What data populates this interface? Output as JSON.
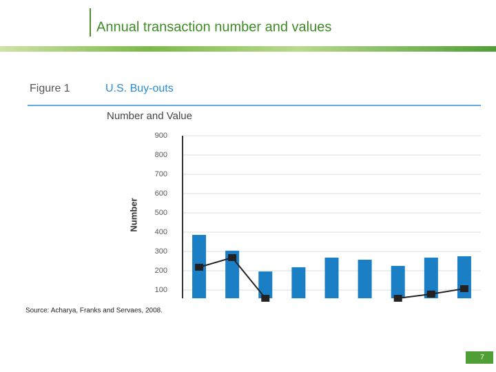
{
  "slide": {
    "title": "Annual transaction number and values",
    "source": "Source: Acharya, Franks and Servaes, 2008.",
    "page_number": "7"
  },
  "chart_data": {
    "type": "bar",
    "figure_label": "Figure 1",
    "title": "U.S. Buy-outs",
    "subtitle": "Number and Value",
    "y_label": "Number",
    "categories": [
      null,
      null,
      null,
      null,
      null,
      null,
      null,
      null,
      null
    ],
    "series": [
      {
        "type": "bar",
        "color": "#1a7fc4",
        "values": [
          386,
          304,
          196,
          218,
          268,
          257,
          225,
          268,
          275
        ]
      },
      {
        "type": "line",
        "color": "#222222",
        "values": [
          218,
          268,
          57,
          null,
          null,
          null,
          57,
          79,
          107
        ]
      }
    ],
    "ylim": [
      57,
      900
    ],
    "yticks": [
      100,
      200,
      300,
      400,
      500,
      600,
      700,
      800,
      900
    ],
    "grid": true
  }
}
